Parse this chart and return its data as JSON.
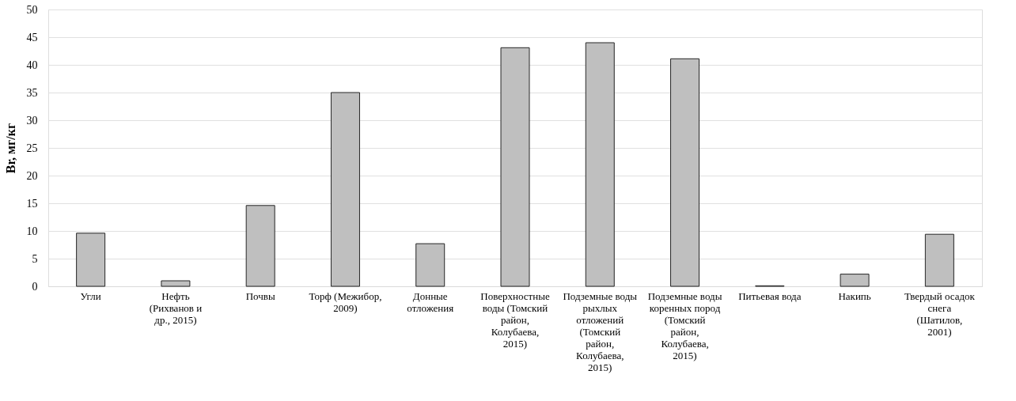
{
  "chart_data": {
    "type": "bar",
    "ylabel": "Br, мг/кг",
    "categories": [
      "Угли",
      "Нефть (Рихванов и др., 2015)",
      "Почвы",
      "Торф (Межибор, 2009)",
      "Донные отложения",
      "Поверхностные воды  (Томский район, Колубаева, 2015)",
      "Подземные воды рыхлых отложений (Томский район, Колубаева, 2015)",
      "Подземные воды коренных пород (Томский район, Колубаева, 2015)",
      "Питьевая вода",
      "Накипь",
      "Твердый осадок снега (Шатилов, 2001)"
    ],
    "values": [
      9.6,
      1.0,
      14.6,
      35.0,
      7.7,
      43.1,
      44.0,
      41.1,
      0.1,
      2.2,
      9.4
    ],
    "color": "#bfbfbf",
    "ylim": [
      0,
      50
    ],
    "yticks": [
      0,
      5,
      10,
      15,
      20,
      25,
      30,
      35,
      40,
      45,
      50
    ],
    "grid": "y"
  }
}
